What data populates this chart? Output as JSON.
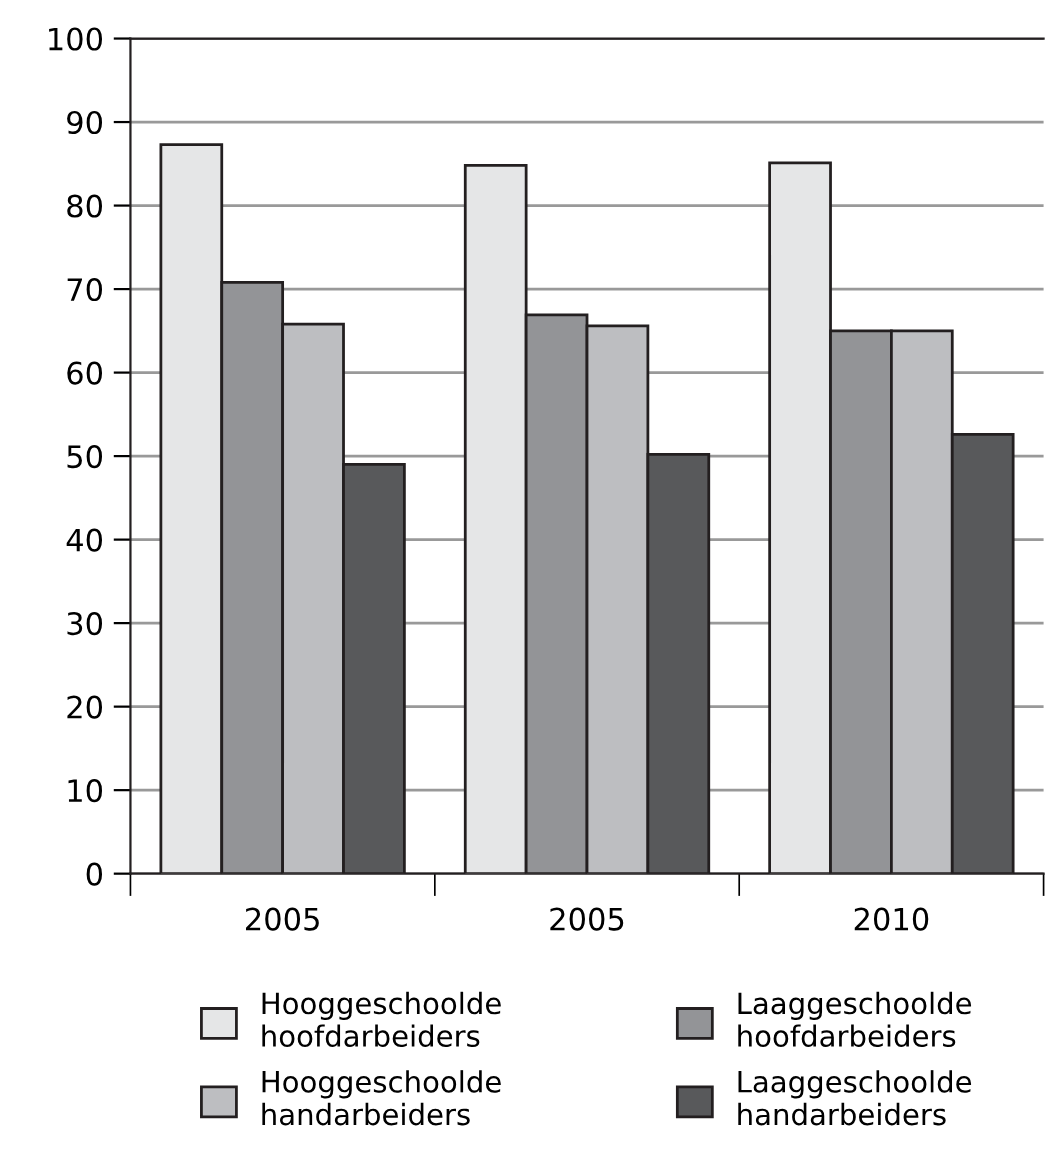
{
  "chart_data": {
    "type": "bar",
    "categories": [
      "2005",
      "2005",
      "2010"
    ],
    "series": [
      {
        "name": "Hooggeschoolde hoofdarbeiders",
        "color": "#e5e6e7",
        "values": [
          87.3,
          84.8,
          85.1
        ]
      },
      {
        "name": "Laaggeschoolde hoofdarbeiders",
        "color": "#939497",
        "values": [
          70.8,
          66.9,
          65.0
        ]
      },
      {
        "name": "Hooggeschoolde handarbeiders",
        "color": "#bdbec1",
        "values": [
          65.8,
          65.6,
          65.0
        ]
      },
      {
        "name": "Laaggeschoolde handarbeiders",
        "color": "#58595b",
        "values": [
          49.0,
          50.2,
          52.6
        ]
      }
    ],
    "ylim": [
      0,
      100
    ],
    "yticks": [
      0,
      10,
      20,
      30,
      40,
      50,
      60,
      70,
      80,
      90,
      100
    ],
    "grid": "y",
    "legend": "bottom"
  }
}
